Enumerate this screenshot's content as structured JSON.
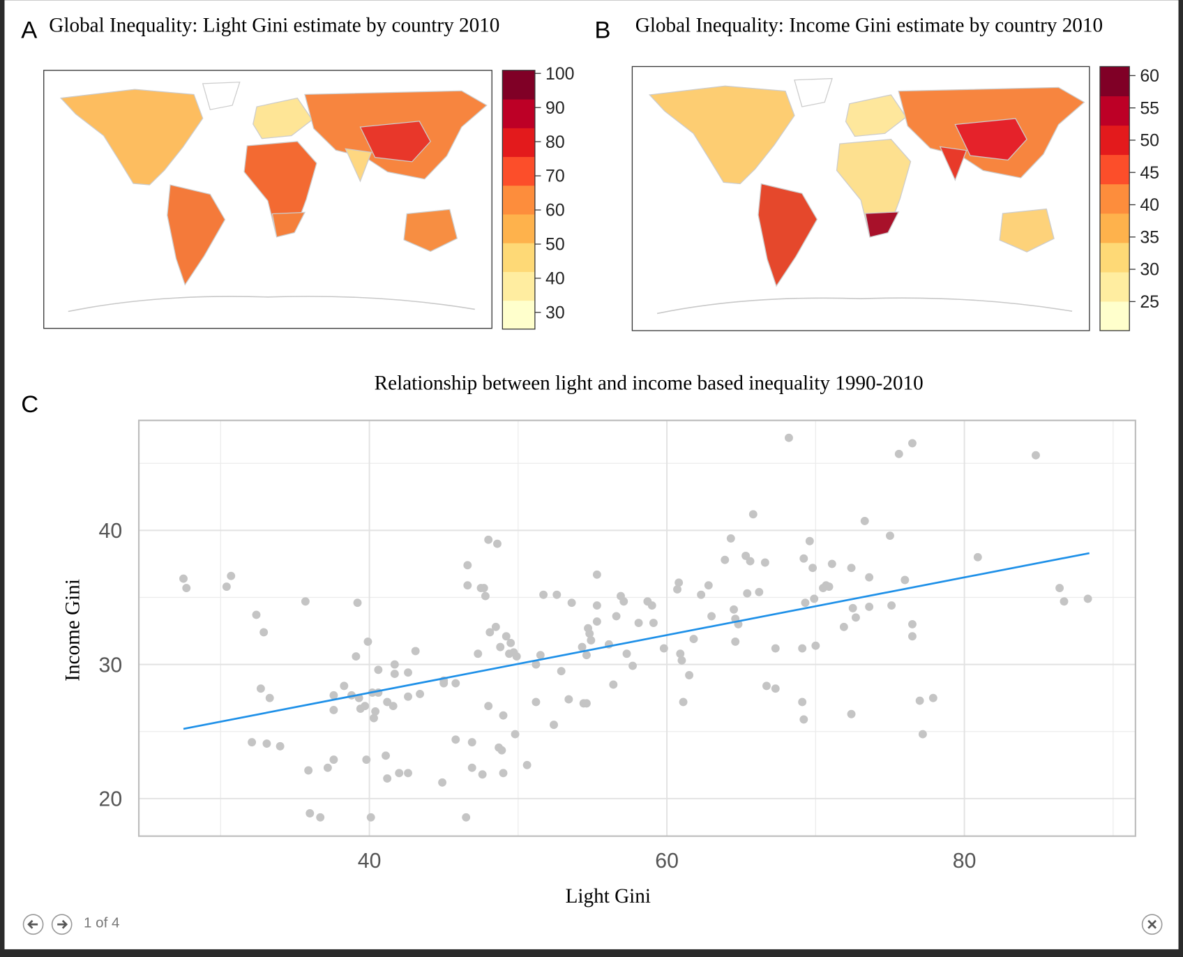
{
  "chart_data": [
    {
      "type": "map",
      "panel_label": "A",
      "title": "Global Inequality: Light Gini estimate by country 2010",
      "colorbar": {
        "lim": [
          25.1,
          100.9
        ],
        "ticks": [
          30,
          40,
          50,
          60,
          70,
          80,
          90,
          100
        ],
        "colors": [
          "#ffffcc",
          "#ffeda0",
          "#fed976",
          "#feb24c",
          "#fd8d3c",
          "#fc4e2a",
          "#e31a1c",
          "#bd0026",
          "#800026"
        ]
      }
    },
    {
      "type": "map",
      "panel_label": "B",
      "title": "Global Inequality: Income Gini estimate by country 2010",
      "colorbar": {
        "lim": [
          20.5,
          61.4
        ],
        "ticks": [
          25,
          30,
          35,
          40,
          45,
          50,
          55,
          60
        ],
        "colors": [
          "#ffffcc",
          "#ffeda0",
          "#fed976",
          "#feb24c",
          "#fd8d3c",
          "#fc4e2a",
          "#e31a1c",
          "#bd0026",
          "#800026"
        ]
      }
    },
    {
      "type": "scatter",
      "panel_label": "C",
      "title": "Relationship between light and income based inequality 1990-2010",
      "x_label": "Light Gini",
      "y_label": "Income Gini",
      "xlim": [
        24.5,
        91.5
      ],
      "ylim": [
        17.2,
        48.2
      ],
      "xticks": [
        40,
        60,
        80
      ],
      "yticks": [
        20,
        30,
        40
      ],
      "x_minor_grid": [
        30,
        50,
        70,
        90
      ],
      "y_minor_grid": [
        25,
        35,
        45
      ],
      "grid": true,
      "color": "#c4c4c4",
      "x": [
        27.5,
        27.7,
        30.4,
        30.7,
        32.4,
        32.9,
        32.7,
        33.3,
        32.1,
        33.1,
        34.0,
        35.7,
        35.9,
        36.0,
        36.7,
        37.2,
        37.6,
        37.6,
        37.6,
        38.3,
        38.8,
        39.1,
        39.2,
        39.3,
        39.4,
        39.7,
        39.9,
        39.8,
        40.1,
        40.3,
        40.4,
        40.2,
        40.6,
        40.6,
        41.2,
        41.1,
        41.2,
        41.6,
        41.7,
        41.7,
        42.0,
        42.6,
        42.6,
        42.6,
        43.1,
        43.4,
        44.9,
        45.0,
        45.0,
        45.8,
        45.8,
        46.5,
        46.6,
        46.6,
        46.9,
        46.9,
        47.3,
        47.5,
        47.7,
        47.8,
        48.0,
        48.1,
        48.5,
        48.6,
        47.6,
        48.0,
        48.7,
        48.9,
        49.0,
        49.0,
        48.8,
        49.2,
        49.4,
        49.5,
        49.7,
        49.8,
        49.9,
        50.6,
        51.2,
        51.5,
        51.2,
        51.7,
        52.4,
        52.6,
        52.9,
        53.4,
        53.6,
        54.4,
        54.6,
        54.3,
        54.6,
        54.7,
        54.8,
        54.9,
        55.3,
        55.3,
        55.3,
        56.1,
        56.4,
        56.6,
        56.9,
        57.1,
        57.3,
        57.7,
        58.1,
        58.7,
        59.0,
        59.1,
        59.8,
        60.7,
        60.8,
        60.9,
        61.0,
        61.1,
        61.5,
        61.8,
        62.3,
        62.8,
        63.0,
        63.9,
        64.3,
        64.5,
        64.6,
        64.6,
        64.8,
        65.3,
        65.6,
        65.8,
        65.4,
        66.2,
        66.6,
        66.7,
        67.3,
        67.3,
        68.2,
        69.1,
        69.1,
        69.2,
        69.3,
        69.2,
        69.6,
        69.8,
        69.9,
        70.0,
        70.5,
        70.7,
        70.9,
        71.1,
        71.9,
        72.4,
        72.4,
        72.5,
        72.7,
        73.3,
        73.6,
        73.6,
        75.0,
        75.1,
        75.6,
        76.0,
        76.5,
        76.5,
        76.5,
        77.0,
        77.2,
        77.9,
        80.9,
        84.8,
        86.4,
        86.7,
        88.3
      ],
      "y": [
        36.4,
        35.7,
        35.8,
        36.6,
        33.7,
        32.4,
        28.2,
        27.5,
        24.2,
        24.1,
        23.9,
        34.7,
        22.1,
        18.9,
        18.6,
        22.3,
        22.9,
        27.7,
        26.6,
        28.4,
        27.7,
        30.6,
        34.6,
        27.5,
        26.7,
        26.9,
        31.7,
        22.9,
        18.6,
        26.0,
        26.5,
        27.9,
        27.9,
        29.6,
        27.2,
        23.2,
        21.5,
        26.9,
        30.0,
        29.3,
        21.9,
        21.9,
        29.4,
        27.6,
        31.0,
        27.8,
        21.2,
        28.8,
        28.6,
        28.6,
        24.4,
        18.6,
        37.4,
        35.9,
        22.3,
        24.2,
        30.8,
        35.7,
        35.7,
        35.1,
        39.3,
        32.4,
        32.8,
        39.0,
        21.8,
        26.9,
        23.8,
        23.6,
        21.9,
        26.2,
        31.3,
        32.1,
        30.8,
        31.6,
        30.9,
        24.8,
        30.6,
        22.5,
        30.0,
        30.7,
        27.2,
        35.2,
        25.5,
        35.2,
        29.5,
        27.4,
        34.6,
        27.1,
        27.1,
        31.3,
        30.7,
        32.7,
        32.3,
        31.8,
        36.7,
        34.4,
        33.2,
        31.5,
        28.5,
        33.6,
        35.1,
        34.7,
        30.8,
        29.9,
        33.1,
        34.7,
        34.4,
        33.1,
        31.2,
        35.6,
        36.1,
        30.8,
        30.3,
        27.2,
        29.2,
        31.9,
        35.2,
        35.9,
        33.6,
        37.8,
        39.4,
        34.1,
        33.4,
        31.7,
        33.0,
        38.1,
        37.7,
        41.2,
        35.3,
        35.4,
        37.6,
        28.4,
        28.2,
        31.2,
        46.9,
        31.2,
        27.2,
        25.9,
        34.6,
        37.9,
        39.2,
        37.2,
        34.9,
        31.4,
        35.7,
        35.9,
        35.8,
        37.5,
        32.8,
        26.3,
        37.2,
        34.2,
        33.5,
        40.7,
        36.5,
        34.3,
        39.6,
        34.4,
        45.7,
        36.3,
        33.0,
        32.1,
        46.5,
        27.3,
        24.8,
        27.5,
        38.0,
        45.6,
        35.7,
        34.7,
        34.9
      ],
      "fit": {
        "x": [
          27.5,
          88.4
        ],
        "y": [
          25.2,
          38.3
        ],
        "color": "#1e90e8"
      }
    }
  ],
  "viewer": {
    "page_counter": "1 of 4"
  }
}
